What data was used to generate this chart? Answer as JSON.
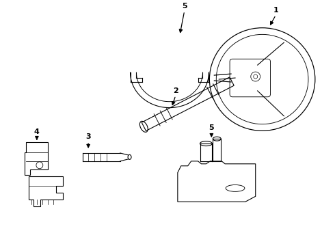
{
  "background_color": "#ffffff",
  "line_color": "#000000",
  "lw": 0.8,
  "figw": 4.9,
  "figh": 3.6,
  "dpi": 100
}
